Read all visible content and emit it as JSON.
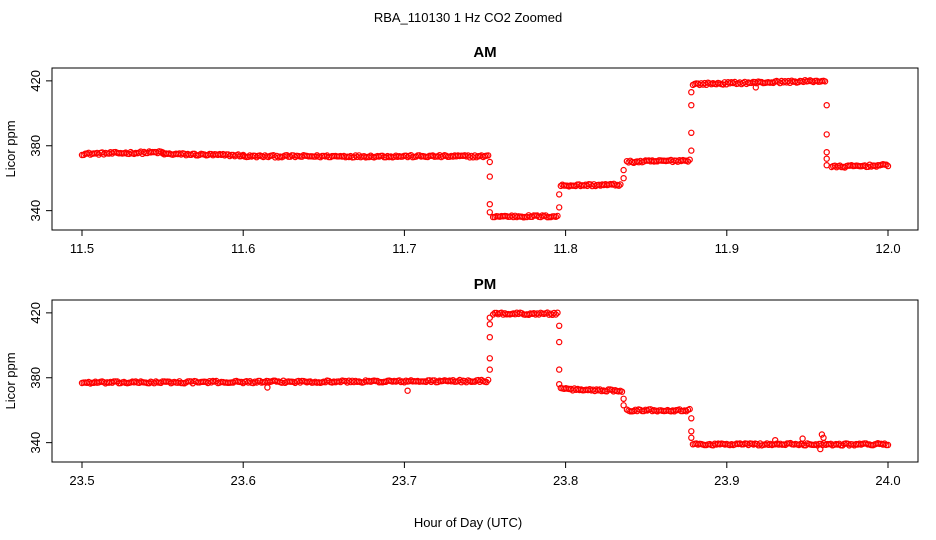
{
  "figure_title": "RBA_110130  1 Hz CO2 Zoomed",
  "xlabel": "Hour of Day (UTC)",
  "colors": {
    "points": "#ff0000",
    "axes": "#000000",
    "background": "#ffffff"
  },
  "chart_data": [
    {
      "type": "scatter",
      "title": "AM",
      "ylabel": "Licor ppm",
      "xlim": [
        11.5,
        12.0
      ],
      "ylim": [
        333,
        423
      ],
      "xticks": [
        "11.5",
        "11.6",
        "11.7",
        "11.8",
        "11.9",
        "12.0"
      ],
      "yticks": [
        "340",
        "380",
        "420"
      ],
      "segments": [
        {
          "x0": 11.5,
          "x1": 11.55,
          "y0": 375,
          "y1": 376
        },
        {
          "x0": 11.55,
          "x1": 11.6,
          "y0": 375,
          "y1": 374
        },
        {
          "x0": 11.6,
          "x1": 11.752,
          "y0": 373.5,
          "y1": 373.5
        },
        {
          "x0": 11.755,
          "x1": 11.795,
          "y0": 336.5,
          "y1": 336.5
        },
        {
          "x0": 11.797,
          "x1": 11.834,
          "y0": 355.5,
          "y1": 356
        },
        {
          "x0": 11.838,
          "x1": 11.877,
          "y0": 370,
          "y1": 371
        },
        {
          "x0": 11.879,
          "x1": 11.961,
          "y0": 418,
          "y1": 420
        },
        {
          "x0": 11.965,
          "x1": 12.0,
          "y0": 367,
          "y1": 368
        }
      ],
      "transitions": [
        {
          "x": 11.753,
          "values": [
            370,
            361,
            344,
            339
          ]
        },
        {
          "x": 11.796,
          "values": [
            342,
            350
          ]
        },
        {
          "x": 11.836,
          "values": [
            360,
            365
          ]
        },
        {
          "x": 11.878,
          "values": [
            377,
            388,
            405,
            413
          ]
        },
        {
          "x": 11.962,
          "values": [
            405,
            387,
            376,
            372,
            368
          ]
        }
      ],
      "outliers": [
        {
          "x": 11.918,
          "y": 416
        }
      ]
    },
    {
      "type": "scatter",
      "title": "PM",
      "ylabel": "Licor ppm",
      "xlim": [
        23.5,
        24.0
      ],
      "ylim": [
        333,
        423
      ],
      "xticks": [
        "23.5",
        "23.6",
        "23.7",
        "23.8",
        "23.9",
        "24.0"
      ],
      "yticks": [
        "340",
        "380",
        "420"
      ],
      "segments": [
        {
          "x0": 23.5,
          "x1": 23.752,
          "y0": 377,
          "y1": 378
        },
        {
          "x0": 23.755,
          "x1": 23.795,
          "y0": 419.5,
          "y1": 419.5
        },
        {
          "x0": 23.797,
          "x1": 23.835,
          "y0": 373,
          "y1": 372
        },
        {
          "x0": 23.838,
          "x1": 23.877,
          "y0": 360,
          "y1": 360
        },
        {
          "x0": 23.879,
          "x1": 24.0,
          "y0": 339,
          "y1": 339
        }
      ],
      "transitions": [
        {
          "x": 23.753,
          "values": [
            385,
            392,
            405,
            413,
            417
          ]
        },
        {
          "x": 23.796,
          "values": [
            412,
            402,
            385,
            376
          ]
        },
        {
          "x": 23.836,
          "values": [
            367,
            363
          ]
        },
        {
          "x": 23.878,
          "values": [
            355,
            347,
            343
          ]
        }
      ],
      "outliers": [
        {
          "x": 23.615,
          "y": 374
        },
        {
          "x": 23.702,
          "y": 372
        },
        {
          "x": 23.93,
          "y": 341.5
        },
        {
          "x": 23.947,
          "y": 342.5
        },
        {
          "x": 23.959,
          "y": 345
        },
        {
          "x": 23.96,
          "y": 343
        },
        {
          "x": 23.958,
          "y": 336
        }
      ]
    }
  ]
}
